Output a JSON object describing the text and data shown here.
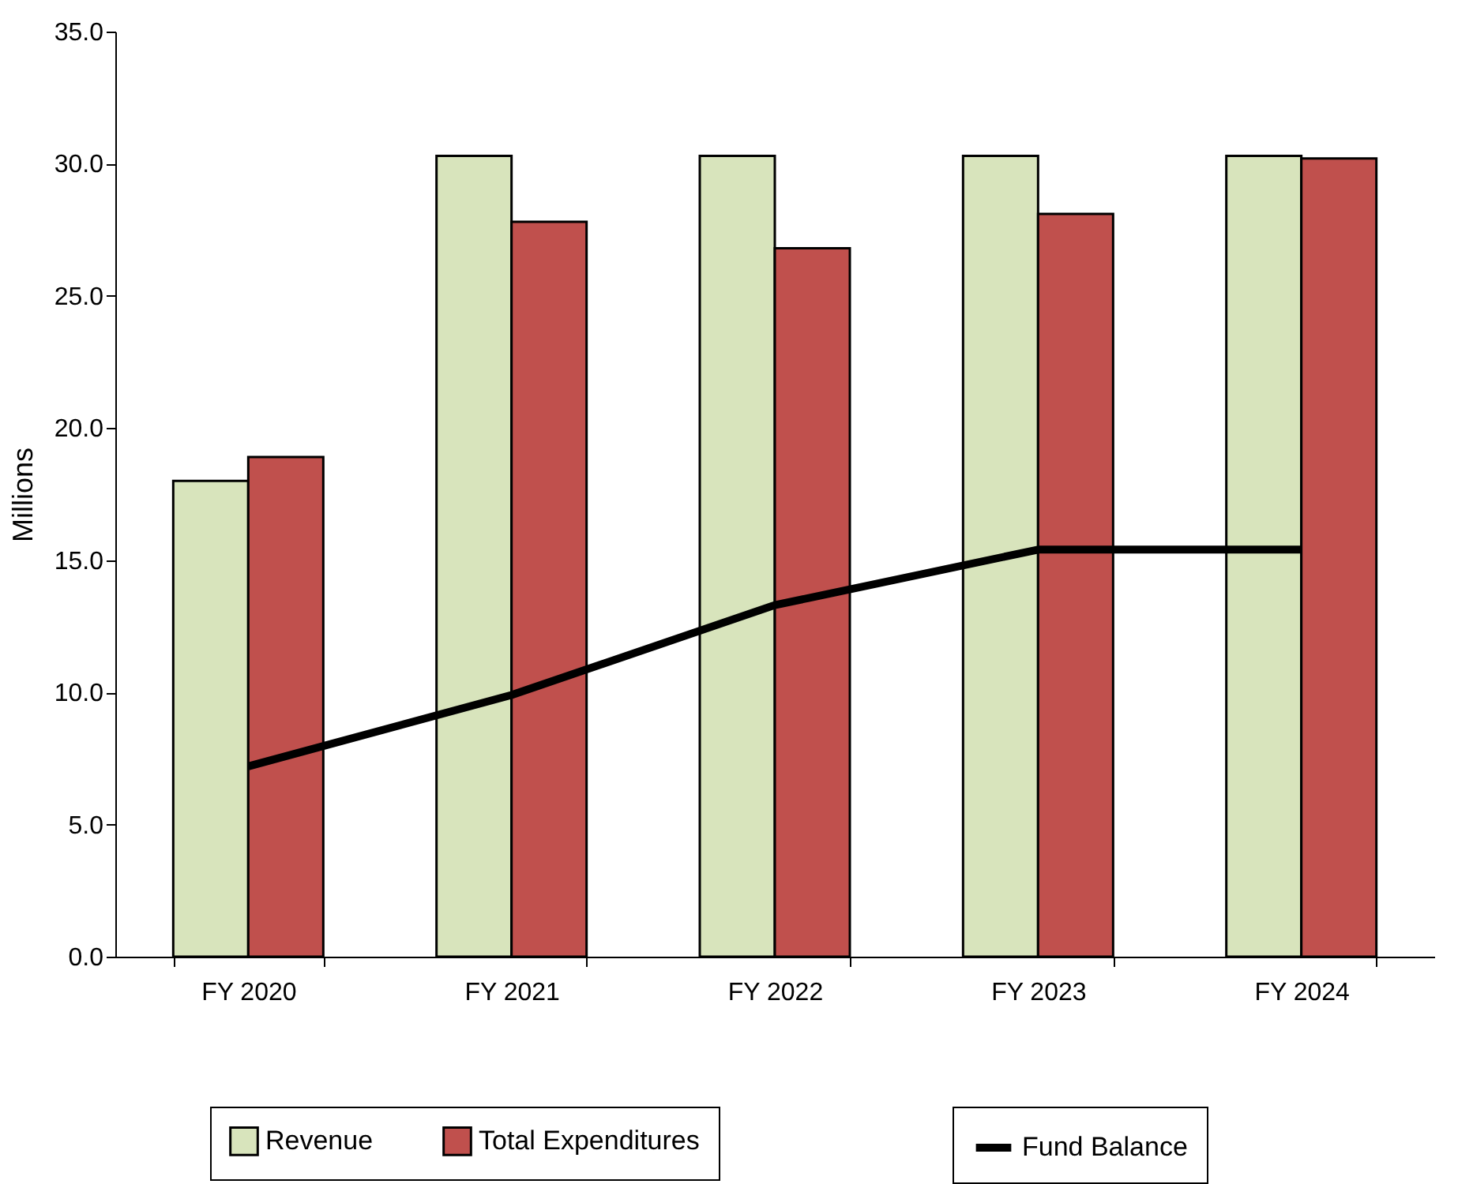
{
  "chart_data": {
    "type": "bar",
    "ylabel": "Millions",
    "categories": [
      "FY 2020",
      "FY 2021",
      "FY 2022",
      "FY 2023",
      "FY 2024"
    ],
    "series": [
      {
        "name": "Revenue",
        "color": "#d8e4bc",
        "values": [
          18.0,
          30.3,
          30.3,
          30.3,
          30.3
        ]
      },
      {
        "name": "Total Expenditures",
        "color": "#c0504d",
        "values": [
          18.9,
          27.8,
          26.8,
          28.1,
          30.2
        ]
      },
      {
        "name": "Fund Balance",
        "type": "line",
        "color": "#000000",
        "values": [
          7.2,
          9.9,
          13.3,
          15.4,
          15.4
        ]
      }
    ],
    "ylim": [
      0,
      35
    ],
    "yticks": [
      {
        "value": 0,
        "label": "0.0"
      },
      {
        "value": 5,
        "label": "5.0"
      },
      {
        "value": 10,
        "label": "10.0"
      },
      {
        "value": 15,
        "label": "15.0"
      },
      {
        "value": 20,
        "label": "20.0"
      },
      {
        "value": 25,
        "label": "25.0"
      },
      {
        "value": 30,
        "label": "30.0"
      },
      {
        "value": 35,
        "label": "35.0"
      }
    ],
    "grid": false,
    "legend": "bottom",
    "marker": "none",
    "line_style": "solid"
  }
}
